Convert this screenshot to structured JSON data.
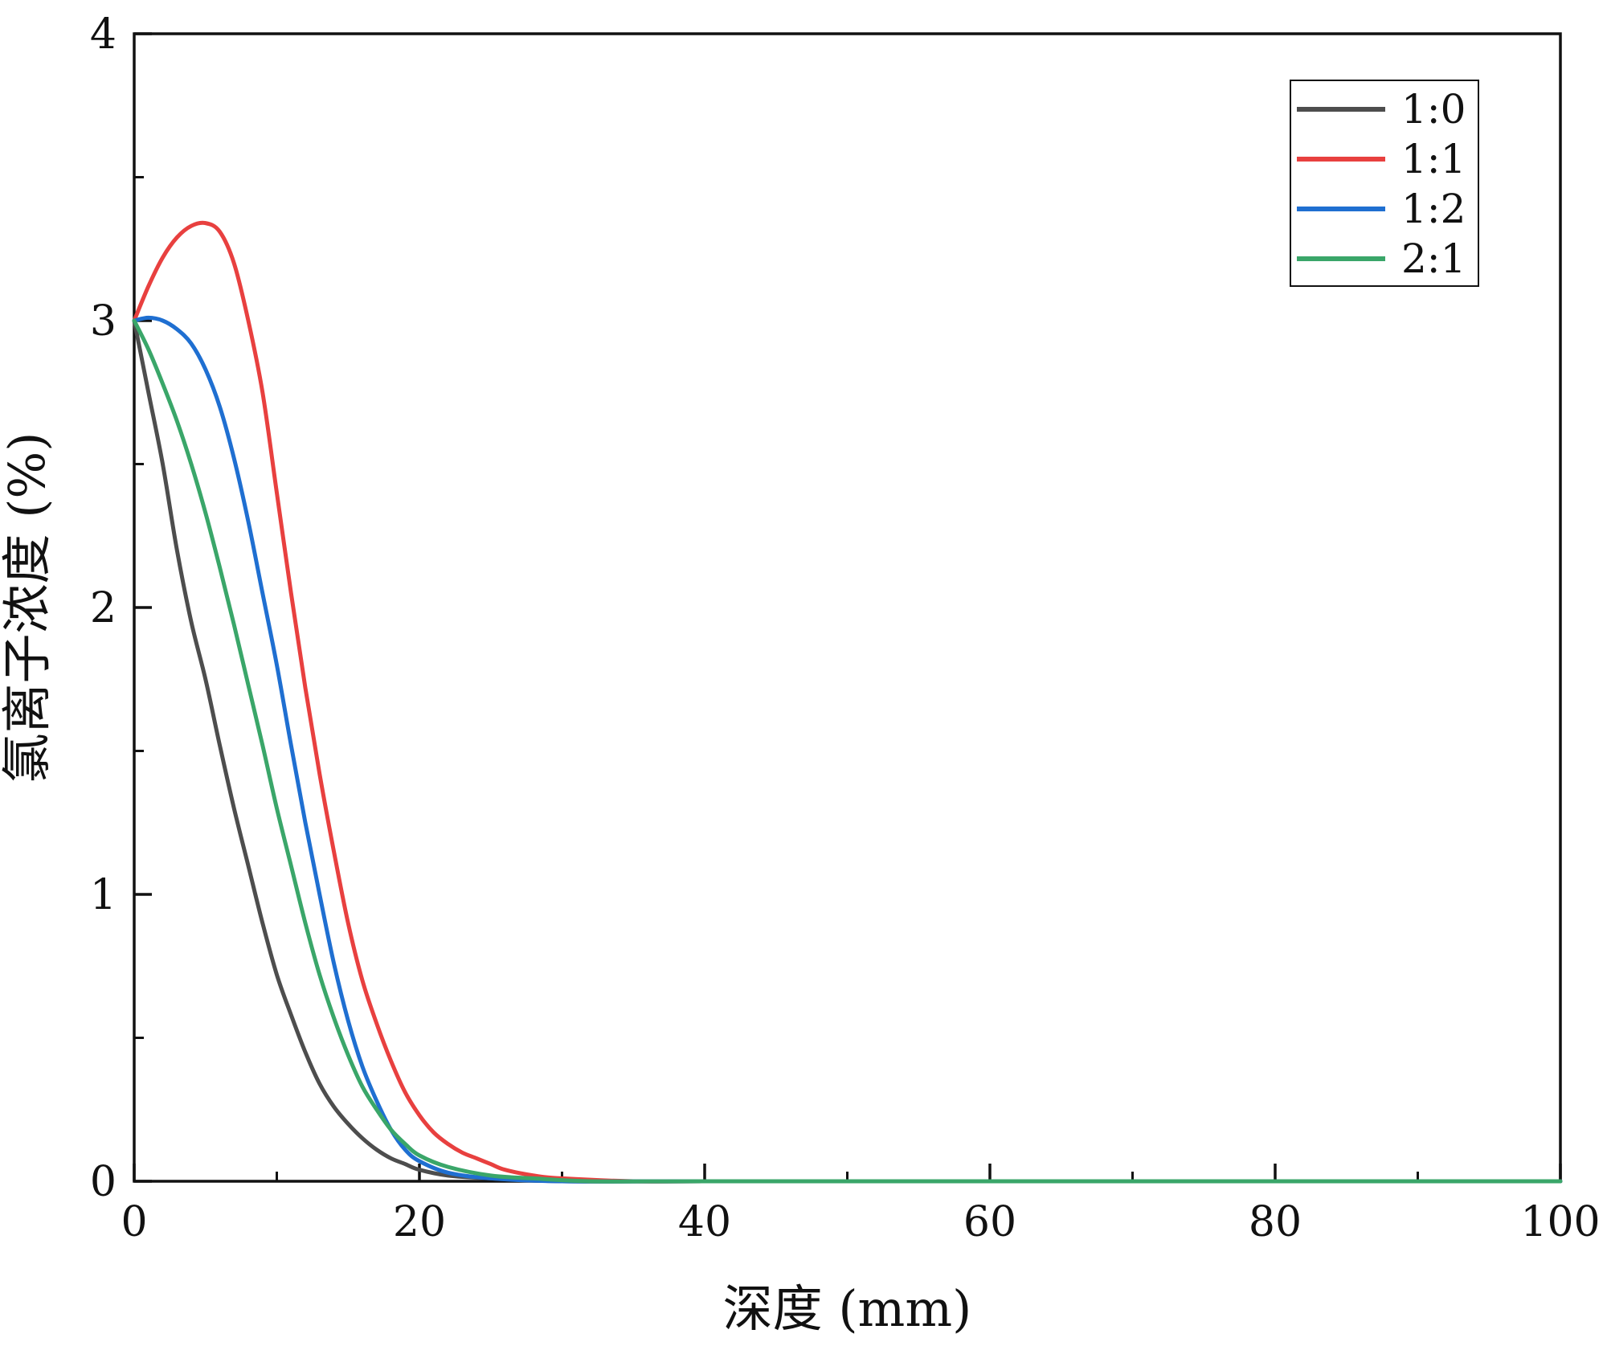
{
  "chart_data": {
    "type": "line",
    "xlabel": "深度 (mm)",
    "ylabel": "氯离子浓度 (%)",
    "xlim": [
      0,
      100
    ],
    "ylim": [
      0,
      4
    ],
    "x_ticks": [
      0,
      20,
      40,
      60,
      80,
      100
    ],
    "x_tick_labels": [
      "0",
      "20",
      "40",
      "60",
      "80",
      "100"
    ],
    "y_ticks": [
      0,
      1,
      2,
      3,
      4
    ],
    "y_tick_labels": [
      "0",
      "1",
      "2",
      "3",
      "4"
    ],
    "grid": false,
    "legend": "top-right",
    "series": [
      {
        "name": "1:0",
        "color": "#4d4d4d",
        "points": [
          [
            0,
            3.0
          ],
          [
            1,
            2.75
          ],
          [
            2,
            2.5
          ],
          [
            3,
            2.2
          ],
          [
            4,
            1.95
          ],
          [
            5,
            1.75
          ],
          [
            6,
            1.52
          ],
          [
            7,
            1.3
          ],
          [
            8,
            1.1
          ],
          [
            9,
            0.9
          ],
          [
            10,
            0.72
          ],
          [
            11,
            0.58
          ],
          [
            12,
            0.45
          ],
          [
            13,
            0.34
          ],
          [
            14,
            0.26
          ],
          [
            15,
            0.2
          ],
          [
            16,
            0.15
          ],
          [
            17,
            0.11
          ],
          [
            18,
            0.08
          ],
          [
            19,
            0.06
          ],
          [
            20,
            0.04
          ],
          [
            22,
            0.02
          ],
          [
            25,
            0.01
          ],
          [
            30,
            0.0
          ],
          [
            40,
            0.0
          ],
          [
            60,
            0.0
          ],
          [
            80,
            0.0
          ],
          [
            100,
            0.0
          ]
        ]
      },
      {
        "name": "1:1",
        "color": "#e8403f",
        "points": [
          [
            0,
            3.0
          ],
          [
            1,
            3.12
          ],
          [
            2,
            3.22
          ],
          [
            3,
            3.29
          ],
          [
            4,
            3.33
          ],
          [
            5,
            3.34
          ],
          [
            6,
            3.31
          ],
          [
            7,
            3.2
          ],
          [
            8,
            3.0
          ],
          [
            9,
            2.75
          ],
          [
            10,
            2.4
          ],
          [
            11,
            2.05
          ],
          [
            12,
            1.72
          ],
          [
            13,
            1.42
          ],
          [
            14,
            1.15
          ],
          [
            15,
            0.9
          ],
          [
            16,
            0.7
          ],
          [
            17,
            0.55
          ],
          [
            18,
            0.42
          ],
          [
            19,
            0.31
          ],
          [
            20,
            0.23
          ],
          [
            21,
            0.17
          ],
          [
            22,
            0.13
          ],
          [
            23,
            0.1
          ],
          [
            24,
            0.08
          ],
          [
            25,
            0.06
          ],
          [
            26,
            0.04
          ],
          [
            28,
            0.02
          ],
          [
            30,
            0.01
          ],
          [
            35,
            0.0
          ],
          [
            40,
            0.0
          ],
          [
            60,
            0.0
          ],
          [
            80,
            0.0
          ],
          [
            100,
            0.0
          ]
        ]
      },
      {
        "name": "1:2",
        "color": "#1f6fd1",
        "points": [
          [
            0,
            3.0
          ],
          [
            1,
            3.01
          ],
          [
            2,
            3.0
          ],
          [
            3,
            2.97
          ],
          [
            4,
            2.92
          ],
          [
            5,
            2.83
          ],
          [
            6,
            2.7
          ],
          [
            7,
            2.52
          ],
          [
            8,
            2.3
          ],
          [
            9,
            2.05
          ],
          [
            10,
            1.8
          ],
          [
            11,
            1.52
          ],
          [
            12,
            1.25
          ],
          [
            13,
            1.0
          ],
          [
            14,
            0.76
          ],
          [
            15,
            0.56
          ],
          [
            16,
            0.4
          ],
          [
            17,
            0.28
          ],
          [
            18,
            0.18
          ],
          [
            19,
            0.11
          ],
          [
            20,
            0.07
          ],
          [
            22,
            0.03
          ],
          [
            25,
            0.01
          ],
          [
            30,
            0.0
          ],
          [
            40,
            0.0
          ],
          [
            60,
            0.0
          ],
          [
            80,
            0.0
          ],
          [
            100,
            0.0
          ]
        ]
      },
      {
        "name": "2:1",
        "color": "#3aa669",
        "points": [
          [
            0,
            3.0
          ],
          [
            1,
            2.9
          ],
          [
            2,
            2.78
          ],
          [
            3,
            2.65
          ],
          [
            4,
            2.5
          ],
          [
            5,
            2.33
          ],
          [
            6,
            2.14
          ],
          [
            7,
            1.94
          ],
          [
            8,
            1.73
          ],
          [
            9,
            1.52
          ],
          [
            10,
            1.3
          ],
          [
            11,
            1.1
          ],
          [
            12,
            0.9
          ],
          [
            13,
            0.72
          ],
          [
            14,
            0.57
          ],
          [
            15,
            0.44
          ],
          [
            16,
            0.33
          ],
          [
            17,
            0.25
          ],
          [
            18,
            0.18
          ],
          [
            19,
            0.13
          ],
          [
            20,
            0.09
          ],
          [
            22,
            0.05
          ],
          [
            25,
            0.02
          ],
          [
            28,
            0.01
          ],
          [
            32,
            0.0
          ],
          [
            40,
            0.0
          ],
          [
            60,
            0.0
          ],
          [
            80,
            0.0
          ],
          [
            100,
            0.0
          ]
        ]
      }
    ]
  }
}
